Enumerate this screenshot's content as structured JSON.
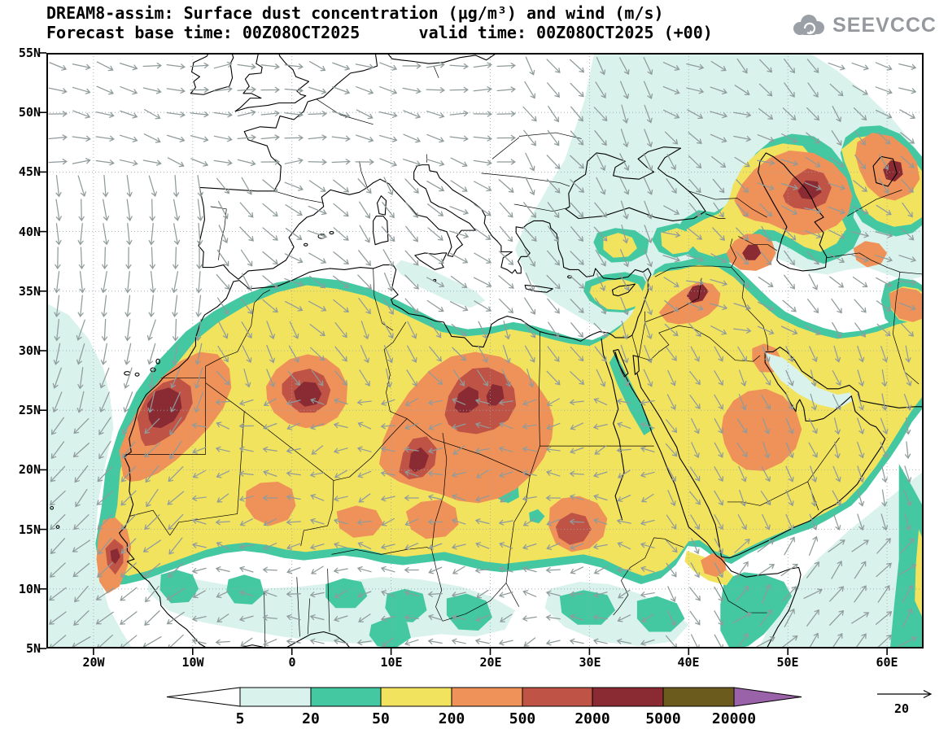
{
  "header": {
    "title": "DREAM8-assim: Surface dust concentration (μg/m³) and wind (m/s)",
    "subtitle": "Forecast base time: 00Z08OCT2025      valid time: 00Z08OCT2025 (+00)",
    "brand": "SEEVCCC"
  },
  "axes": {
    "y_ticks": [
      "55N",
      "50N",
      "45N",
      "40N",
      "35N",
      "30N",
      "25N",
      "20N",
      "15N",
      "10N",
      "5N"
    ],
    "x_ticks": [
      "20W",
      "10W",
      "0",
      "10E",
      "20E",
      "30E",
      "40E",
      "50E",
      "60E"
    ]
  },
  "legend": {
    "labels": [
      "5",
      "20",
      "50",
      "200",
      "500",
      "2000",
      "5000",
      "20000"
    ],
    "colors": {
      "below": "#ffffff",
      "c5_20": "#d9f2ec",
      "c20_50": "#43c8a2",
      "c50_200": "#f2e35f",
      "c200_500": "#ef9259",
      "c500_2000": "#bf5345",
      "c2000_5000": "#8a2a32",
      "c5000_20000": "#6b5c1e",
      "above": "#9a62a8"
    }
  },
  "wind_reference": {
    "label": "20"
  },
  "chart_data": {
    "type": "heatmap",
    "title": "DREAM8-assim: Surface dust concentration (μg/m³) and wind (m/s)",
    "field": "surface dust concentration",
    "units": "μg/m³",
    "contour_levels": [
      5,
      20,
      50,
      200,
      500,
      2000,
      5000,
      20000
    ],
    "lon_range_deg": [
      -24.75,
      63.9
    ],
    "lat_range_deg": [
      5,
      55
    ],
    "wind_vector_reference_ms": 20,
    "high_dust_regions": [
      "Western Sahara / Mauritania (2000-5000)",
      "central Algeria (2000-5000)",
      "southwest Libya / northern Chad (2000-5000)",
      "eastern Libya / northwest Sudan (2000-5000)",
      "central Sudan (200-500)",
      "central Saudi Arabia (200-500)",
      "Syria-Iraq border (500-5000)",
      "northwest Iran / Urmia (2000-5000)",
      "Caspian lowland / west Kazakhstan (500-5000)",
      "Turkmenistan / NE of Caspian (200-2000)"
    ]
  }
}
